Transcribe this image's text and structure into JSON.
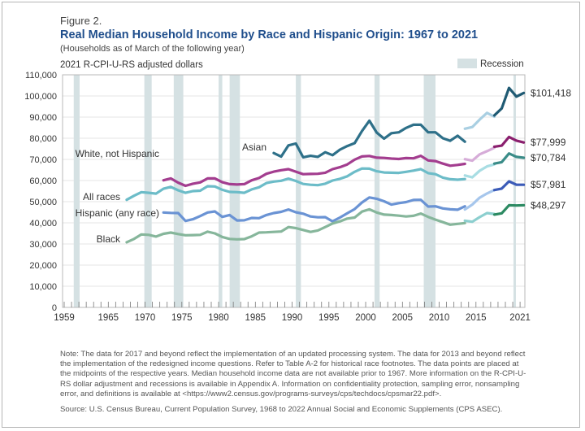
{
  "figure_label": "Figure 2.",
  "chart_data": {
    "type": "line",
    "title": "Real Median Household Income by Race and Hispanic Origin: 1967 to 2021",
    "subtitle": "(Households as of March of the following year)",
    "ylabel": "2021 R-CPI-U-RS adjusted dollars",
    "xlim": [
      1959,
      2021
    ],
    "ylim": [
      0,
      110000
    ],
    "x_ticks": [
      1959,
      1965,
      1970,
      1975,
      1980,
      1985,
      1990,
      1995,
      2000,
      2005,
      2010,
      2015,
      2021
    ],
    "y_ticks": [
      "0",
      "10,000",
      "20,000",
      "30,000",
      "40,000",
      "50,000",
      "60,000",
      "70,000",
      "80,000",
      "90,000",
      "100,000",
      "110,000"
    ],
    "grid": true,
    "legend": {
      "label": "Recession",
      "placement": "top-right",
      "color": "#d5e1e3"
    },
    "recessions": [
      [
        1960.3,
        1961.1
      ],
      [
        1969.9,
        1970.9
      ],
      [
        1973.9,
        1975.2
      ],
      [
        1980.0,
        1980.5
      ],
      [
        1981.5,
        1982.9
      ],
      [
        1990.5,
        1991.2
      ],
      [
        2001.2,
        2001.9
      ],
      [
        2007.9,
        2009.5
      ],
      [
        2020.1,
        2020.4
      ]
    ],
    "series": [
      {
        "name": "Asian",
        "end_label": "$101,418",
        "colors": [
          "#2e7089",
          "#a9cfe2",
          "#1f5a73"
        ],
        "segments": [
          {
            "start": 1987,
            "values": [
              73000,
              71300,
              76600,
              77500,
              71000,
              71700,
              71200,
              73400,
              72000,
              74600,
              76300,
              77700,
              83400,
              88300,
              82700,
              79800,
              82400,
              82800,
              84900,
              86400,
              86400,
              82800,
              82800,
              80000,
              78800,
              81200,
              78400
            ]
          },
          {
            "start": 2013,
            "values": [
              84500,
              85300,
              88800,
              92000,
              90200
            ]
          },
          {
            "start": 2017,
            "values": [
              90800,
              94100,
              103800,
              99700,
              101418
            ]
          }
        ]
      },
      {
        "name": "White, not Hispanic",
        "end_label": "$77,999",
        "colors": [
          "#a33d8f",
          "#d6acd8",
          "#8a1f6e"
        ],
        "segments": [
          {
            "start": 1972,
            "values": [
              60100,
              61000,
              59000,
              57500,
              58500,
              59100,
              61000,
              61000,
              59200,
              58300,
              58100,
              58300,
              60100,
              61200,
              63200,
              64200,
              64900,
              65400,
              64200,
              63000,
              63100,
              63200,
              63700,
              65400,
              66300,
              67600,
              69900,
              71400,
              71600,
              70800,
              70700,
              70400,
              70200,
              70600,
              70500,
              71700,
              69500,
              69200,
              68000,
              67000,
              67400,
              67900
            ]
          },
          {
            "start": 2013,
            "values": [
              70100,
              69400,
              72400,
              73900,
              75500
            ]
          },
          {
            "start": 2017,
            "values": [
              76000,
              76500,
              80600,
              78900,
              77999
            ]
          }
        ]
      },
      {
        "name": "All races",
        "end_label": "$70,784",
        "colors": [
          "#6cbcc8",
          "#a8dde3",
          "#3a8c88"
        ],
        "segments": [
          {
            "start": 1967,
            "values": [
              50900,
              52800,
              54500,
              54200,
              53800,
              56100,
              57000,
              55400,
              54200,
              55000,
              55200,
              57300,
              57200,
              55600,
              54600,
              54500,
              54200,
              55800,
              56800,
              58800,
              59500,
              59900,
              60900,
              59800,
              58400,
              58000,
              57800,
              58500,
              60000,
              60800,
              62000,
              64100,
              65700,
              65600,
              64400,
              63800,
              63700,
              63600,
              64100,
              64700,
              65400,
              63500,
              63000,
              61400,
              60600,
              60400,
              60700
            ]
          },
          {
            "start": 2013,
            "values": [
              62400,
              61500,
              64600,
              66700,
              67600
            ]
          },
          {
            "start": 2017,
            "values": [
              68000,
              68700,
              72800,
              71200,
              70784
            ]
          }
        ]
      },
      {
        "name": "Hispanic (any race)",
        "end_label": "$57,981",
        "colors": [
          "#6a93d4",
          "#a6c6ec",
          "#3b5bb8"
        ],
        "segments": [
          {
            "start": 1972,
            "values": [
              44900,
              44700,
              44600,
              40900,
              41700,
              43200,
              44900,
              45400,
              42800,
              43700,
              41100,
              41200,
              42300,
              42200,
              43700,
              44600,
              45200,
              46300,
              45000,
              44300,
              43000,
              42600,
              42700,
              40700,
              42500,
              44500,
              46500,
              49600,
              52000,
              51400,
              50200,
              48600,
              49300,
              49800,
              50800,
              50900,
              47700,
              47800,
              46800,
              46400,
              46200,
              47800
            ]
          },
          {
            "start": 2013,
            "values": [
              46300,
              48600,
              51900,
              53900,
              55500
            ]
          },
          {
            "start": 2017,
            "values": [
              55500,
              56200,
              59600,
              58000,
              57981
            ]
          }
        ]
      },
      {
        "name": "Black",
        "end_label": "$48,297",
        "colors": [
          "#86b69b",
          "#8ccfcf",
          "#2c8a62"
        ],
        "segments": [
          {
            "start": 1967,
            "values": [
              30800,
              32400,
              34500,
              34300,
              33500,
              34800,
              35400,
              34700,
              34100,
              34200,
              34300,
              35800,
              35000,
              33300,
              32400,
              32200,
              32300,
              33600,
              35400,
              35500,
              35700,
              35900,
              38000,
              37500,
              36600,
              35700,
              36400,
              38000,
              39700,
              40700,
              42000,
              42500,
              45300,
              46400,
              44900,
              43900,
              43700,
              43400,
              43000,
              43300,
              44400,
              42800,
              41500,
              40300,
              39100,
              39500,
              39900
            ]
          },
          {
            "start": 2013,
            "values": [
              41000,
              40500,
              42700,
              44600,
              44200
            ]
          },
          {
            "start": 2017,
            "values": [
              43900,
              44500,
              48300,
              48200,
              48297
            ]
          }
        ]
      }
    ]
  },
  "notes": "Note: The data for 2017 and beyond reflect the implementation of an updated processing system. The data for 2013 and beyond reflect the implementation of the redesigned income questions. Refer to Table A-2 for historical race footnotes. The data points are placed at the midpoints of the respective years. Median household income data are not available prior to 1967. More information on the R-CPI-U-RS dollar adjustment and recessions is available in Appendix A. Information on confidentiality protection, sampling error, nonsampling error, and definitions is available at <https://www2.census.gov/programs-surveys/cps/techdocs/cpsmar22.pdf>.",
  "source": "Source: U.S. Census Bureau, Current Population Survey, 1968 to 2022 Annual Social and Economic Supplements (CPS ASEC)."
}
